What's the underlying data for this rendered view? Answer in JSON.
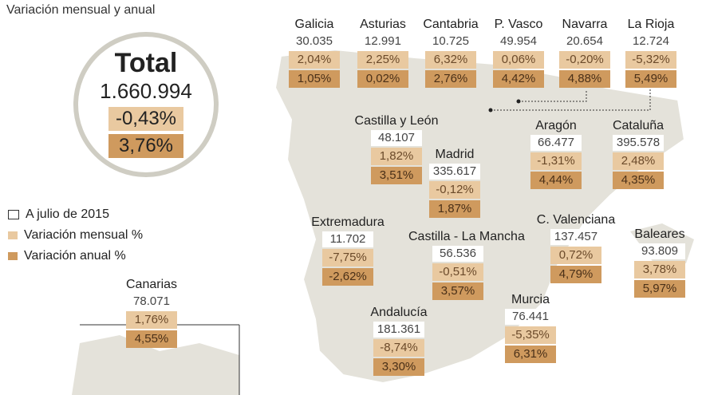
{
  "subtitle": "Variación mensual y anual",
  "total": {
    "label": "Total",
    "value": "1.660.994",
    "monthly": "-0,43%",
    "annual": "3,76%"
  },
  "legend": [
    {
      "label": "A julio de 2015",
      "color": "#ffffff"
    },
    {
      "label": "Variación mensual %",
      "color": "#e9c9a0"
    },
    {
      "label": "Variación anual %",
      "color": "#cf9a5e"
    }
  ],
  "regions": [
    {
      "id": "galicia",
      "name": "Galicia",
      "value": "30.035",
      "monthly": "2,04%",
      "annual": "1,05%"
    },
    {
      "id": "asturias",
      "name": "Asturias",
      "value": "12.991",
      "monthly": "2,25%",
      "annual": "0,02%"
    },
    {
      "id": "cantabria",
      "name": "Cantabria",
      "value": "10.725",
      "monthly": "6,32%",
      "annual": "2,76%"
    },
    {
      "id": "pvasco",
      "name": "P. Vasco",
      "value": "49.954",
      "monthly": "0,06%",
      "annual": "4,42%"
    },
    {
      "id": "navarra",
      "name": "Navarra",
      "value": "20.654",
      "monthly": "-0,20%",
      "annual": "4,88%"
    },
    {
      "id": "larioja",
      "name": "La Rioja",
      "value": "12.724",
      "monthly": "-5,32%",
      "annual": "5,49%"
    },
    {
      "id": "cyl",
      "name": "Castilla y León",
      "value": "48.107",
      "monthly": "1,82%",
      "annual": "3,51%"
    },
    {
      "id": "madrid",
      "name": "Madrid",
      "value": "335.617",
      "monthly": "-0,12%",
      "annual": "1,87%"
    },
    {
      "id": "aragon",
      "name": "Aragón",
      "value": "66.477",
      "monthly": "-1,31%",
      "annual": "4,44%"
    },
    {
      "id": "cataluna",
      "name": "Cataluña",
      "value": "395.578",
      "monthly": "2,48%",
      "annual": "4,35%"
    },
    {
      "id": "extremadura",
      "name": "Extremadura",
      "value": "11.702",
      "monthly": "-7,75%",
      "annual": "-2,62%"
    },
    {
      "id": "clm",
      "name": "Castilla - La Mancha",
      "value": "56.536",
      "monthly": "-0,51%",
      "annual": "3,57%"
    },
    {
      "id": "valenciana",
      "name": "C. Valenciana",
      "value": "137.457",
      "monthly": "0,72%",
      "annual": "4,79%"
    },
    {
      "id": "baleares",
      "name": "Baleares",
      "value": "93.809",
      "monthly": "3,78%",
      "annual": "5,97%"
    },
    {
      "id": "andalucia",
      "name": "Andalucía",
      "value": "181.361",
      "monthly": "-8,74%",
      "annual": "3,30%"
    },
    {
      "id": "murcia",
      "name": "Murcia",
      "value": "76.441",
      "monthly": "-5,35%",
      "annual": "6,31%"
    },
    {
      "id": "canarias",
      "name": "Canarias",
      "value": "78.071",
      "monthly": "1,76%",
      "annual": "4,55%"
    }
  ]
}
